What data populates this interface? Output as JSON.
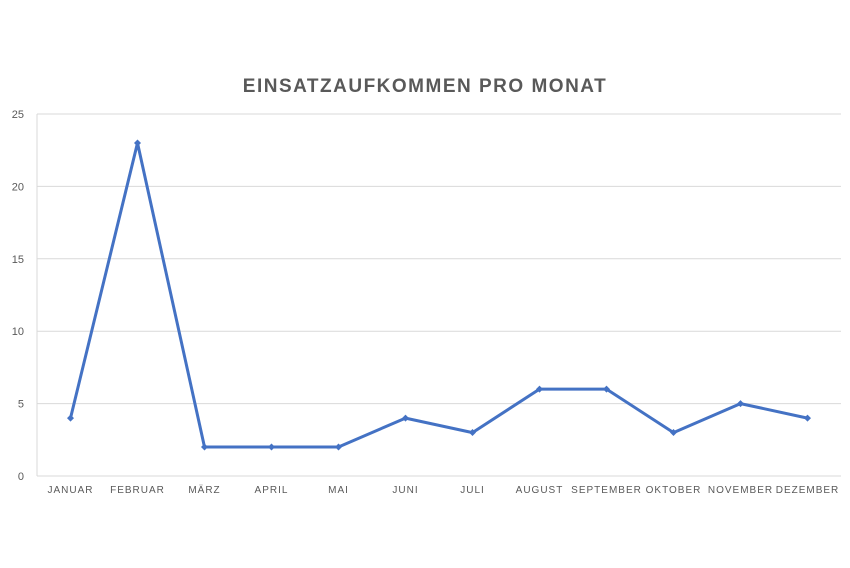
{
  "chart_data": {
    "type": "line",
    "title": "EINSATZAUFKOMMEN PRO MONAT",
    "xlabel": "",
    "ylabel": "",
    "categories": [
      "JANUAR",
      "FEBRUAR",
      "MÄRZ",
      "APRIL",
      "MAI",
      "JUNI",
      "JULI",
      "AUGUST",
      "SEPTEMBER",
      "OKTOBER",
      "NOVEMBER",
      "DEZEMBER"
    ],
    "series": [
      {
        "values": [
          4,
          23,
          2,
          2,
          2,
          4,
          3,
          6,
          6,
          3,
          5,
          4
        ],
        "color": "#4472C4"
      }
    ],
    "ylim": [
      0,
      25
    ],
    "yticks": [
      "0",
      "5",
      "10",
      "15",
      "20",
      "25"
    ],
    "grid": true,
    "legend": "none"
  }
}
